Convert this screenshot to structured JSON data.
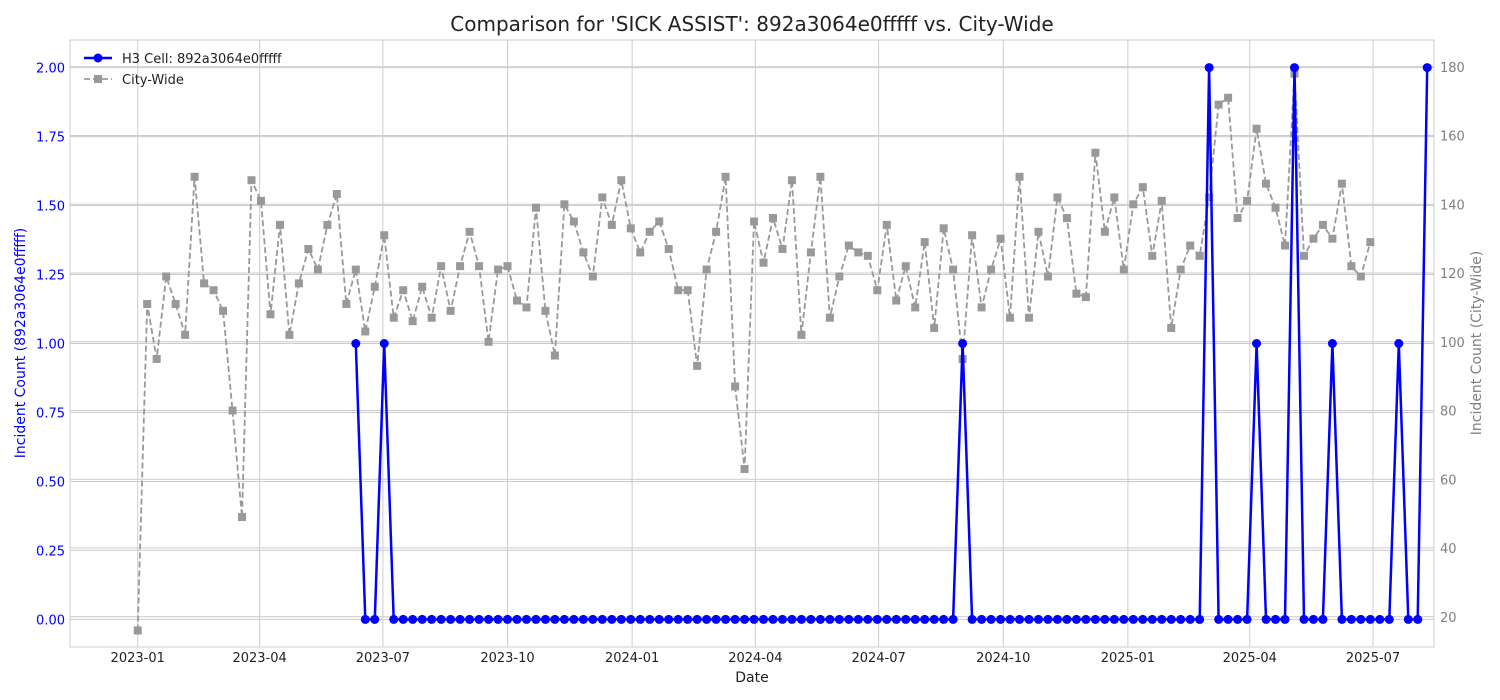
{
  "chart_data": {
    "type": "line",
    "title": "Comparison for 'SICK ASSIST': 892a3064e0fffff vs. City-Wide",
    "xlabel": "Date",
    "ylabel_left": "Incident Count (892a3064e0fffff)",
    "ylabel_right": "Incident Count (City-Wide)",
    "grid": true,
    "legend_position": "top-left",
    "x_range": [
      "2022-11-12",
      "2025-08-15"
    ],
    "x_ticks": [
      {
        "date": "2023-01-01",
        "label": "2023-01"
      },
      {
        "date": "2023-04-01",
        "label": "2023-04"
      },
      {
        "date": "2023-07-01",
        "label": "2023-07"
      },
      {
        "date": "2023-10-01",
        "label": "2023-10"
      },
      {
        "date": "2024-01-01",
        "label": "2024-01"
      },
      {
        "date": "2024-04-01",
        "label": "2024-04"
      },
      {
        "date": "2024-07-01",
        "label": "2024-07"
      },
      {
        "date": "2024-10-01",
        "label": "2024-10"
      },
      {
        "date": "2025-01-01",
        "label": "2025-01"
      },
      {
        "date": "2025-04-01",
        "label": "2025-04"
      },
      {
        "date": "2025-07-01",
        "label": "2025-07"
      }
    ],
    "ylim_left": [
      -0.1,
      2.1
    ],
    "yticks_left": [
      "0.00",
      "0.25",
      "0.50",
      "0.75",
      "1.00",
      "1.25",
      "1.50",
      "1.75",
      "2.00"
    ],
    "ylim_right": [
      11.2,
      187.8
    ],
    "yticks_right": [
      "20",
      "40",
      "60",
      "80",
      "100",
      "120",
      "140",
      "160",
      "180"
    ],
    "colors": {
      "h3": "#0000ff",
      "city": "#999999",
      "left_axis": "#0000ff",
      "right_axis": "#808080"
    },
    "series": [
      {
        "name": "H3 Cell: 892a3064e0fffff",
        "axis": "left",
        "start": "2023-06-11",
        "step_days": 7,
        "values": [
          1,
          0,
          0,
          1,
          0,
          0,
          0,
          0,
          0,
          0,
          0,
          0,
          0,
          0,
          0,
          0,
          0,
          0,
          0,
          0,
          0,
          0,
          0,
          0,
          0,
          0,
          0,
          0,
          0,
          0,
          0,
          0,
          0,
          0,
          0,
          0,
          0,
          0,
          0,
          0,
          0,
          0,
          0,
          0,
          0,
          0,
          0,
          0,
          0,
          0,
          0,
          0,
          0,
          0,
          0,
          0,
          0,
          0,
          0,
          0,
          0,
          0,
          0,
          0,
          1,
          0,
          0,
          0,
          0,
          0,
          0,
          0,
          0,
          0,
          0,
          0,
          0,
          0,
          0,
          0,
          0,
          0,
          0,
          0,
          0,
          0,
          0,
          0,
          0,
          0,
          2,
          0,
          0,
          0,
          0,
          1,
          0,
          0,
          0,
          2,
          0,
          0,
          0,
          1,
          0,
          0,
          0,
          0,
          0,
          0,
          1,
          0,
          0,
          2
        ]
      },
      {
        "name": "City-Wide",
        "axis": "right",
        "start": "2023-01-01",
        "step_days": 7,
        "values": [
          16,
          111,
          95,
          119,
          111,
          102,
          148,
          117,
          115,
          109,
          80,
          49,
          147,
          141,
          108,
          134,
          102,
          117,
          127,
          121,
          134,
          143,
          111,
          121,
          103,
          116,
          131,
          107,
          115,
          106,
          116,
          107,
          122,
          109,
          122,
          132,
          122,
          100,
          121,
          122,
          112,
          110,
          139,
          109,
          96,
          140,
          135,
          126,
          119,
          142,
          134,
          147,
          133,
          126,
          132,
          135,
          127,
          115,
          115,
          93,
          121,
          132,
          148,
          87,
          63,
          135,
          123,
          136,
          127,
          147,
          102,
          126,
          148,
          107,
          119,
          128,
          126,
          125,
          115,
          134,
          112,
          122,
          110,
          129,
          104,
          133,
          121,
          95,
          131,
          110,
          121,
          130,
          107,
          148,
          107,
          132,
          119,
          142,
          136,
          114,
          113,
          155,
          132,
          142,
          121,
          140,
          145,
          125,
          141,
          104,
          121,
          128,
          125,
          142,
          169,
          171,
          136,
          141,
          162,
          146,
          139,
          128,
          178,
          125,
          130,
          134,
          130,
          146,
          122,
          119,
          129
        ]
      }
    ]
  }
}
